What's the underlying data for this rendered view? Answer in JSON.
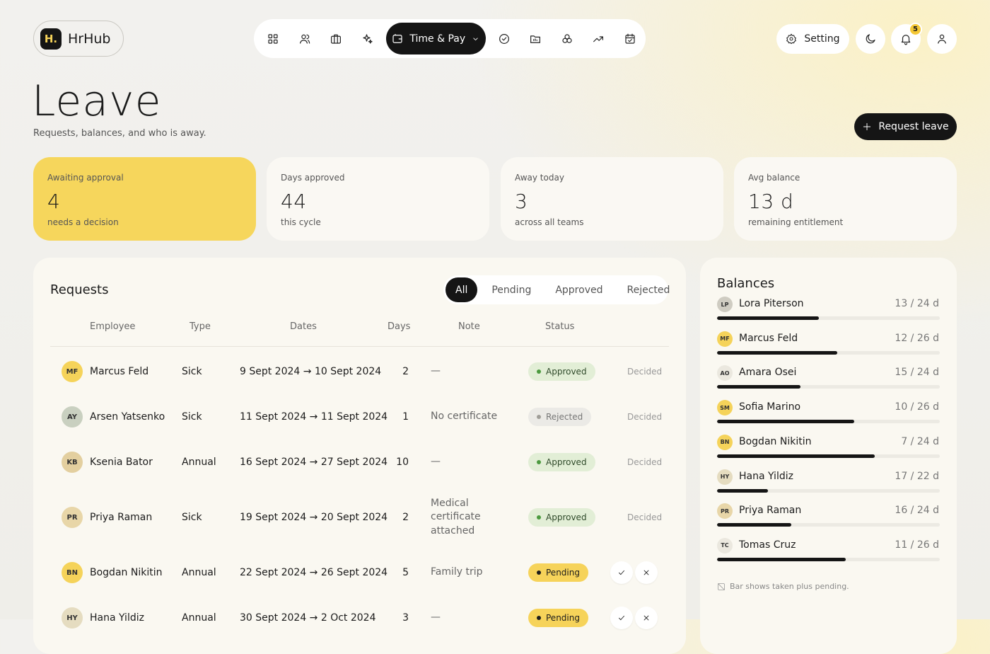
{
  "brand": {
    "logo": "H.",
    "name": "HrHub"
  },
  "nav": {
    "active": "Time & Pay"
  },
  "toolbar": {
    "setting": "Setting",
    "notifications": 5
  },
  "page": {
    "title": "Leave",
    "subtitle": "Requests, balances, and who is away.",
    "action": "Request leave"
  },
  "stats": [
    {
      "label": "Awaiting approval",
      "value": 4,
      "note": "needs a decision"
    },
    {
      "label": "Days approved",
      "value": 44,
      "note": "this cycle"
    },
    {
      "label": "Away today",
      "value": 3,
      "note": "across all teams"
    },
    {
      "label": "Avg balance",
      "value": "13 d",
      "note": "remaining entitlement"
    }
  ],
  "requests": {
    "title": "Requests",
    "filters": [
      "All",
      "Pending",
      "Approved",
      "Rejected"
    ],
    "columns": [
      "Employee",
      "Type",
      "Dates",
      "Days",
      "Note",
      "Status"
    ],
    "rows": [
      {
        "initials": "MF",
        "avatar_color": "#f5d35a",
        "employee": "Marcus Feld",
        "type": "Sick",
        "dates": "9 Sept 2024 → 10 Sept 2024",
        "days": 2,
        "note": "—",
        "status": "Approved",
        "action": "Decided"
      },
      {
        "initials": "AY",
        "avatar_color": "#c9d0c0",
        "employee": "Arsen Yatsenko",
        "type": "Sick",
        "dates": "11 Sept 2024 → 11 Sept 2024",
        "days": 1,
        "note": "No certificate",
        "status": "Rejected",
        "action": "Decided"
      },
      {
        "initials": "KB",
        "avatar_color": "#e3cf9f",
        "employee": "Ksenia Bator",
        "type": "Annual",
        "dates": "16 Sept 2024 → 27 Sept 2024",
        "days": 10,
        "note": "—",
        "status": "Approved",
        "action": "Decided"
      },
      {
        "initials": "PR",
        "avatar_color": "#e8d6a8",
        "employee": "Priya Raman",
        "type": "Sick",
        "dates": "19 Sept 2024 → 20 Sept 2024",
        "days": 2,
        "note": "Medical certificate attached",
        "status": "Approved",
        "action": "Decided"
      },
      {
        "initials": "BN",
        "avatar_color": "#f5d35a",
        "employee": "Bogdan Nikitin",
        "type": "Annual",
        "dates": "22 Sept 2024 → 26 Sept 2024",
        "days": 5,
        "note": "Family trip",
        "status": "Pending"
      },
      {
        "initials": "HY",
        "avatar_color": "#e5dcc0",
        "employee": "Hana Yildiz",
        "type": "Annual",
        "dates": "30 Sept 2024 → 2 Oct 2024",
        "days": 3,
        "note": "—",
        "status": "Pending"
      }
    ]
  },
  "balances": {
    "title": "Balances",
    "items": [
      {
        "initials": "LP",
        "avatar_color": "#cfccc2",
        "name": "Lora Piterson",
        "label": "13 / 24 d",
        "remaining": 13,
        "total": 24
      },
      {
        "initials": "MF",
        "avatar_color": "#f5d35a",
        "name": "Marcus Feld",
        "label": "12 / 26 d",
        "remaining": 12,
        "total": 26
      },
      {
        "initials": "AO",
        "avatar_color": "#ebe8df",
        "name": "Amara Osei",
        "label": "15 / 24 d",
        "remaining": 15,
        "total": 24
      },
      {
        "initials": "SM",
        "avatar_color": "#f5d35a",
        "name": "Sofia Marino",
        "label": "10 / 26 d",
        "remaining": 10,
        "total": 26
      },
      {
        "initials": "BN",
        "avatar_color": "#f5d35a",
        "name": "Bogdan Nikitin",
        "label": "7 / 24 d",
        "remaining": 7,
        "total": 24
      },
      {
        "initials": "HY",
        "avatar_color": "#e5dcc0",
        "name": "Hana Yildiz",
        "label": "17 / 22 d",
        "remaining": 17,
        "total": 22
      },
      {
        "initials": "PR",
        "avatar_color": "#e8d6a8",
        "name": "Priya Raman",
        "label": "16 / 24 d",
        "remaining": 16,
        "total": 24
      },
      {
        "initials": "TC",
        "avatar_color": "#ebe8df",
        "name": "Tomas Cruz",
        "label": "11 / 26 d",
        "remaining": 11,
        "total": 26
      }
    ],
    "footnote": "Bar shows taken plus pending."
  }
}
